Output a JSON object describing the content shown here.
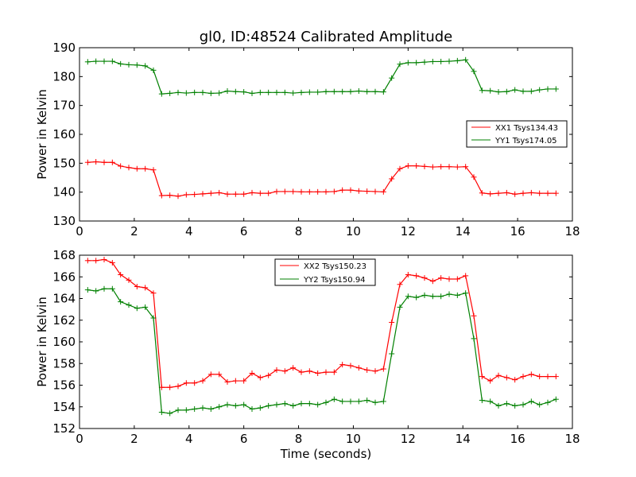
{
  "chart_data": [
    {
      "type": "line",
      "title": "gl0, ID:48524 Calibrated Amplitude",
      "xlabel": "",
      "ylabel": "Power in Kelvin",
      "xlim": [
        0,
        18
      ],
      "ylim": [
        130,
        190
      ],
      "xticks": [
        "0",
        "2",
        "4",
        "6",
        "8",
        "10",
        "12",
        "14",
        "16",
        "18"
      ],
      "yticks": [
        "130",
        "140",
        "150",
        "160",
        "170",
        "180",
        "190"
      ],
      "legend_position": "center-right",
      "x": [
        0.3,
        0.6,
        0.9,
        1.2,
        1.5,
        1.8,
        2.1,
        2.4,
        2.7,
        3.0,
        3.3,
        3.6,
        3.9,
        4.2,
        4.5,
        4.8,
        5.1,
        5.4,
        5.7,
        6.0,
        6.3,
        6.6,
        6.9,
        7.2,
        7.5,
        7.8,
        8.1,
        8.4,
        8.7,
        9.0,
        9.3,
        9.6,
        9.9,
        10.2,
        10.5,
        10.8,
        11.1,
        11.4,
        11.7,
        12.0,
        12.3,
        12.6,
        12.9,
        13.2,
        13.5,
        13.8,
        14.1,
        14.4,
        14.7,
        15.0,
        15.3,
        15.6,
        15.9,
        16.2,
        16.5,
        16.8,
        17.1,
        17.4
      ],
      "series": [
        {
          "name": "XX1 Tsys134.43",
          "color": "#ff0000",
          "values": [
            150.3,
            150.5,
            150.3,
            150.3,
            149.0,
            148.5,
            148.1,
            148.1,
            147.7,
            138.8,
            138.9,
            138.6,
            139.1,
            139.2,
            139.4,
            139.6,
            139.8,
            139.3,
            139.3,
            139.3,
            139.8,
            139.6,
            139.6,
            140.2,
            140.2,
            140.2,
            140.1,
            140.1,
            140.1,
            140.1,
            140.2,
            140.7,
            140.7,
            140.4,
            140.3,
            140.2,
            140.1,
            144.6,
            148.1,
            149.1,
            149.1,
            148.9,
            148.7,
            148.8,
            148.8,
            148.7,
            148.8,
            145.2,
            139.7,
            139.4,
            139.6,
            139.8,
            139.3,
            139.6,
            139.8,
            139.6,
            139.6,
            139.6
          ]
        },
        {
          "name": "YY1 Tsys174.05",
          "color": "#008000",
          "values": [
            185.1,
            185.3,
            185.3,
            185.3,
            184.4,
            184.1,
            184.0,
            183.7,
            182.2,
            174.0,
            174.2,
            174.5,
            174.3,
            174.5,
            174.5,
            174.2,
            174.3,
            175.0,
            174.8,
            174.7,
            174.2,
            174.5,
            174.5,
            174.5,
            174.5,
            174.3,
            174.5,
            174.6,
            174.6,
            174.8,
            174.8,
            174.8,
            174.8,
            175.0,
            174.8,
            174.8,
            174.7,
            179.5,
            184.3,
            184.8,
            184.8,
            185.0,
            185.2,
            185.2,
            185.3,
            185.5,
            185.8,
            181.8,
            175.2,
            175.1,
            174.7,
            174.8,
            175.4,
            174.9,
            174.9,
            175.4,
            175.7,
            175.7
          ]
        }
      ]
    },
    {
      "type": "line",
      "title": "",
      "xlabel": "Time (seconds)",
      "ylabel": "Power in Kelvin",
      "xlim": [
        0,
        18
      ],
      "ylim": [
        152,
        168
      ],
      "xticks": [
        "0",
        "2",
        "4",
        "6",
        "8",
        "10",
        "12",
        "14",
        "16",
        "18"
      ],
      "yticks": [
        "152",
        "154",
        "156",
        "158",
        "160",
        "162",
        "164",
        "166",
        "168"
      ],
      "legend_position": "upper-center",
      "x": [
        0.3,
        0.6,
        0.9,
        1.2,
        1.5,
        1.8,
        2.1,
        2.4,
        2.7,
        3.0,
        3.3,
        3.6,
        3.9,
        4.2,
        4.5,
        4.8,
        5.1,
        5.4,
        5.7,
        6.0,
        6.3,
        6.6,
        6.9,
        7.2,
        7.5,
        7.8,
        8.1,
        8.4,
        8.7,
        9.0,
        9.3,
        9.6,
        9.9,
        10.2,
        10.5,
        10.8,
        11.1,
        11.4,
        11.7,
        12.0,
        12.3,
        12.6,
        12.9,
        13.2,
        13.5,
        13.8,
        14.1,
        14.4,
        14.7,
        15.0,
        15.3,
        15.6,
        15.9,
        16.2,
        16.5,
        16.8,
        17.1,
        17.4
      ],
      "series": [
        {
          "name": "XX2 Tsys150.23",
          "color": "#ff0000",
          "values": [
            167.5,
            167.5,
            167.6,
            167.3,
            166.2,
            165.7,
            165.1,
            165.0,
            164.5,
            155.8,
            155.8,
            155.9,
            156.2,
            156.2,
            156.4,
            157.0,
            157.0,
            156.3,
            156.4,
            156.4,
            157.1,
            156.7,
            156.9,
            157.4,
            157.3,
            157.6,
            157.2,
            157.3,
            157.1,
            157.2,
            157.2,
            157.9,
            157.8,
            157.6,
            157.4,
            157.3,
            157.5,
            161.8,
            165.3,
            166.2,
            166.1,
            165.9,
            165.6,
            165.9,
            165.8,
            165.8,
            166.1,
            162.4,
            156.8,
            156.4,
            156.9,
            156.7,
            156.5,
            156.8,
            157.0,
            156.8,
            156.8,
            156.8
          ]
        },
        {
          "name": "YY2 Tsys150.94",
          "color": "#008000",
          "values": [
            164.8,
            164.7,
            164.9,
            164.9,
            163.7,
            163.4,
            163.1,
            163.2,
            162.2,
            153.5,
            153.4,
            153.7,
            153.7,
            153.8,
            153.9,
            153.8,
            154.0,
            154.2,
            154.1,
            154.2,
            153.8,
            153.9,
            154.1,
            154.2,
            154.3,
            154.1,
            154.3,
            154.3,
            154.2,
            154.4,
            154.7,
            154.5,
            154.5,
            154.5,
            154.6,
            154.4,
            154.5,
            158.9,
            163.2,
            164.2,
            164.1,
            164.3,
            164.2,
            164.2,
            164.4,
            164.3,
            164.5,
            160.3,
            154.6,
            154.5,
            154.1,
            154.3,
            154.1,
            154.2,
            154.5,
            154.2,
            154.4,
            154.7
          ]
        }
      ]
    }
  ]
}
